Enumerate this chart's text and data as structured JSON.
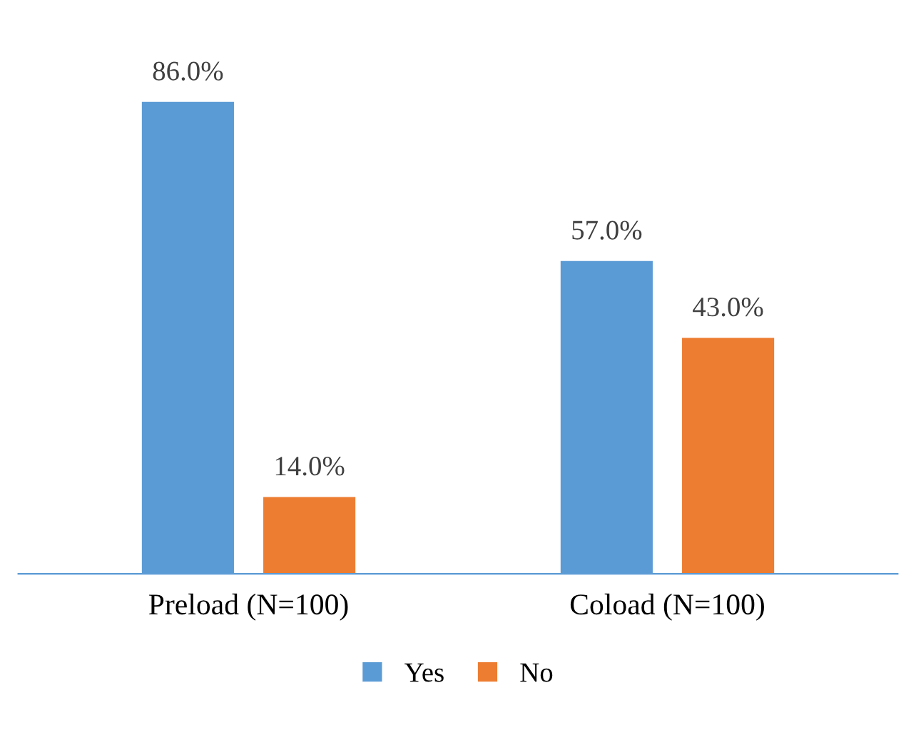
{
  "chart_data": {
    "type": "bar",
    "categories": [
      "Preload (N=100)",
      "Coload (N=100)"
    ],
    "series": [
      {
        "name": "Yes",
        "color": "#5b9bd5",
        "values": [
          86.0,
          57.0
        ],
        "value_labels": [
          "86.0%",
          "57.0%"
        ]
      },
      {
        "name": "No",
        "color": "#ed7d31",
        "values": [
          14.0,
          43.0
        ],
        "value_labels": [
          "14.0%",
          "43.0%"
        ]
      }
    ],
    "legend": "bottom",
    "grid": false,
    "tick_labels": "x"
  }
}
